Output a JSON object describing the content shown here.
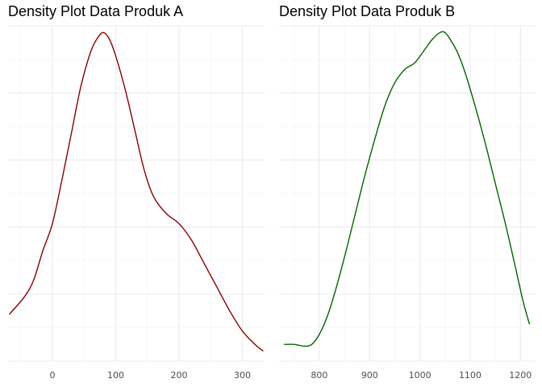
{
  "chart_data": [
    {
      "type": "line",
      "title": "Density Plot Data Produk A",
      "xlabel": "",
      "ylabel": "",
      "xlim": [
        -70,
        335
      ],
      "ylim": [
        0,
        1
      ],
      "x_ticks": [
        "0",
        "100",
        "200",
        "300"
      ],
      "x_tick_values": [
        0,
        100,
        200,
        300
      ],
      "grid": true,
      "series": [
        {
          "color": "#8b0000",
          "x": [
            -68,
            -45,
            -30,
            -15,
            0,
            15,
            30,
            45,
            60,
            70,
            80,
            90,
            100,
            115,
            130,
            145,
            160,
            180,
            200,
            220,
            240,
            260,
            280,
            300,
            320,
            333
          ],
          "y": [
            0.14,
            0.19,
            0.24,
            0.33,
            0.41,
            0.54,
            0.68,
            0.82,
            0.92,
            0.96,
            0.98,
            0.96,
            0.91,
            0.81,
            0.69,
            0.57,
            0.49,
            0.44,
            0.41,
            0.36,
            0.29,
            0.22,
            0.15,
            0.09,
            0.05,
            0.03
          ]
        }
      ]
    },
    {
      "type": "line",
      "title": "Density Plot Data Produk B",
      "xlabel": "",
      "ylabel": "",
      "xlim": [
        720,
        1230
      ],
      "ylim": [
        0,
        1
      ],
      "x_ticks": [
        "800",
        "900",
        "1000",
        "1100",
        "1200"
      ],
      "x_tick_values": [
        800,
        900,
        1000,
        1100,
        1200
      ],
      "grid": true,
      "series": [
        {
          "color": "#006400",
          "x": [
            730,
            750,
            770,
            785,
            800,
            815,
            830,
            850,
            870,
            890,
            910,
            930,
            950,
            970,
            990,
            1010,
            1025,
            1040,
            1050,
            1060,
            1075,
            1090,
            1110,
            1130,
            1150,
            1170,
            1190,
            1205,
            1218
          ],
          "y": [
            0.05,
            0.05,
            0.045,
            0.05,
            0.08,
            0.13,
            0.2,
            0.31,
            0.43,
            0.55,
            0.66,
            0.76,
            0.83,
            0.87,
            0.89,
            0.93,
            0.96,
            0.98,
            0.98,
            0.96,
            0.92,
            0.86,
            0.76,
            0.65,
            0.53,
            0.41,
            0.28,
            0.18,
            0.11
          ]
        }
      ]
    }
  ]
}
